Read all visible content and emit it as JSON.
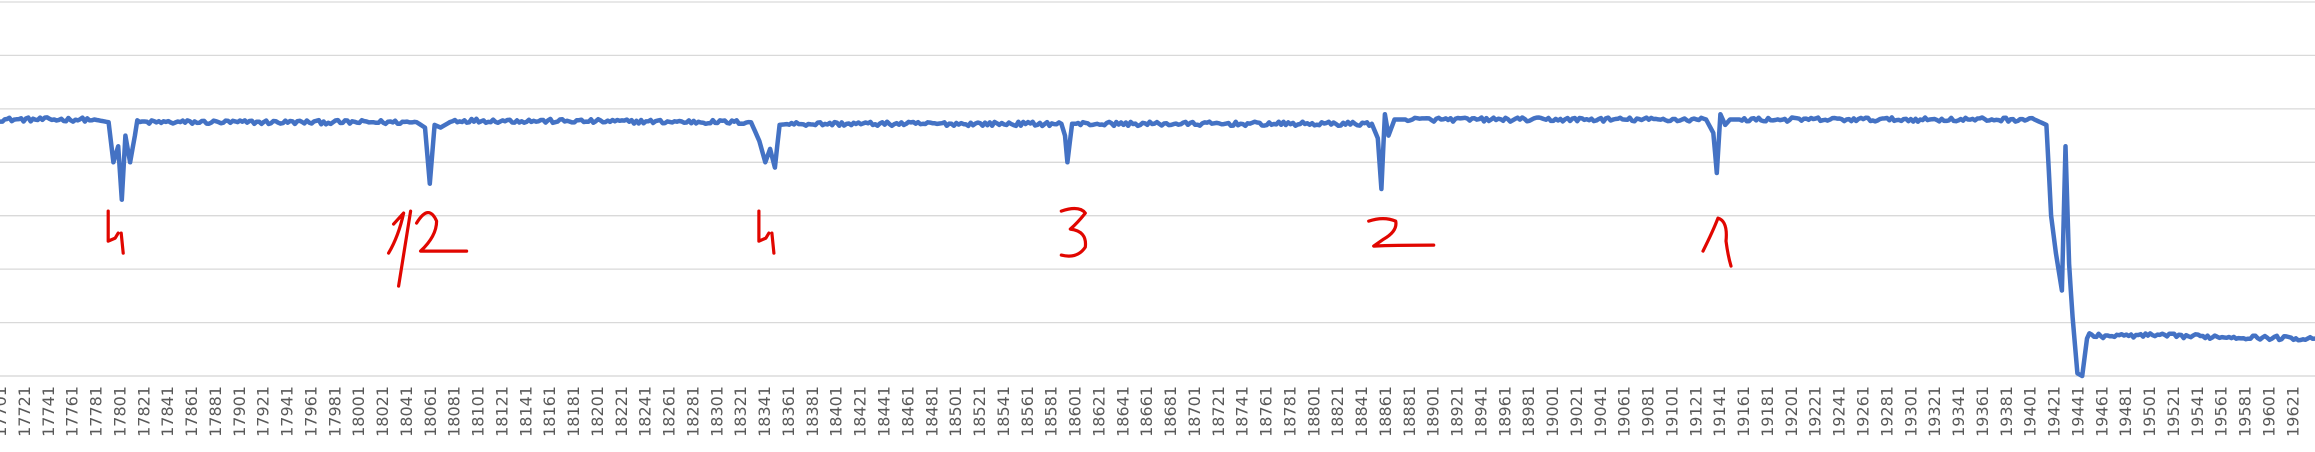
{
  "chart_data": {
    "type": "line",
    "title": "",
    "xlabel": "",
    "ylabel": "",
    "grid": true,
    "legend": "none",
    "x_range": [
      17701,
      19640
    ],
    "ylim": [
      0,
      7
    ],
    "x_tick_labels": [
      "17701",
      "17721",
      "17741",
      "17761",
      "17781",
      "17801",
      "17821",
      "17841",
      "17861",
      "17881",
      "17901",
      "17921",
      "17941",
      "17961",
      "17981",
      "18001",
      "18021",
      "18041",
      "18061",
      "18081",
      "18101",
      "18121",
      "18141",
      "18161",
      "18181",
      "18201",
      "18221",
      "18241",
      "18261",
      "18281",
      "18301",
      "18321",
      "18341",
      "18361",
      "18381",
      "18401",
      "18421",
      "18441",
      "18461",
      "18481",
      "18501",
      "18521",
      "18541",
      "18561",
      "18581",
      "18601",
      "18621",
      "18641",
      "18661",
      "18681",
      "18701",
      "18721",
      "18741",
      "18761",
      "18781",
      "18801",
      "18821",
      "18841",
      "18861",
      "18881",
      "18901",
      "18921",
      "18941",
      "18961",
      "18981",
      "19001",
      "19021",
      "19041",
      "19061",
      "19081",
      "19101",
      "19121",
      "19141",
      "19161",
      "19181",
      "19201",
      "19221",
      "19241",
      "19261",
      "19281",
      "19301",
      "19321",
      "19341",
      "19361",
      "19381",
      "19401",
      "19421",
      "19441",
      "19461",
      "19481",
      "19501",
      "19521",
      "19541",
      "19561",
      "19581",
      "19601",
      "19621"
    ],
    "series": [
      {
        "color": "#4472C4",
        "x": [
          17701,
          17780,
          17792,
          17796,
          17800,
          17803,
          17806,
          17810,
          17816,
          17830,
          18050,
          18057,
          18061,
          18065,
          18070,
          18080,
          18100,
          18330,
          18337,
          18342,
          18346,
          18350,
          18354,
          18362,
          18380,
          18590,
          18593,
          18595,
          18599,
          18604,
          18620,
          18850,
          18855,
          18858,
          18861,
          18864,
          18869,
          18880,
          19130,
          19136,
          19139,
          19142,
          19146,
          19150,
          19160,
          19180,
          19405,
          19415,
          19419,
          19423,
          19428,
          19431,
          19434,
          19437,
          19441,
          19445,
          19449,
          19451,
          19455,
          19470,
          19500,
          19640
        ],
        "y": [
          4.8,
          4.8,
          4.75,
          4.0,
          4.3,
          3.3,
          4.5,
          4.0,
          4.75,
          4.75,
          4.75,
          4.65,
          3.6,
          4.7,
          4.65,
          4.78,
          4.78,
          4.75,
          4.4,
          4.0,
          4.25,
          3.9,
          4.7,
          4.72,
          4.72,
          4.72,
          4.5,
          4.0,
          4.72,
          4.72,
          4.72,
          4.72,
          4.45,
          3.5,
          4.9,
          4.5,
          4.8,
          4.8,
          4.8,
          4.55,
          3.8,
          4.9,
          4.7,
          4.8,
          4.8,
          4.8,
          4.8,
          4.7,
          3.0,
          2.3,
          1.6,
          4.3,
          2.1,
          1.1,
          0.05,
          0,
          0.7,
          0.8,
          0.75,
          0.75,
          0.76,
          0.7
        ]
      }
    ],
    "annotations": [
      {
        "text": "4",
        "x": 17800,
        "note_y": 2.0
      },
      {
        "text": "1/2",
        "x": 18060,
        "note_y": 2.0
      },
      {
        "text": "4",
        "x": 18345,
        "note_y": 2.0
      },
      {
        "text": "3",
        "x": 18600,
        "note_y": 2.0
      },
      {
        "text": "2",
        "x": 18860,
        "note_y": 2.0
      },
      {
        "text": "1",
        "x": 19140,
        "note_y": 2.0
      }
    ]
  }
}
